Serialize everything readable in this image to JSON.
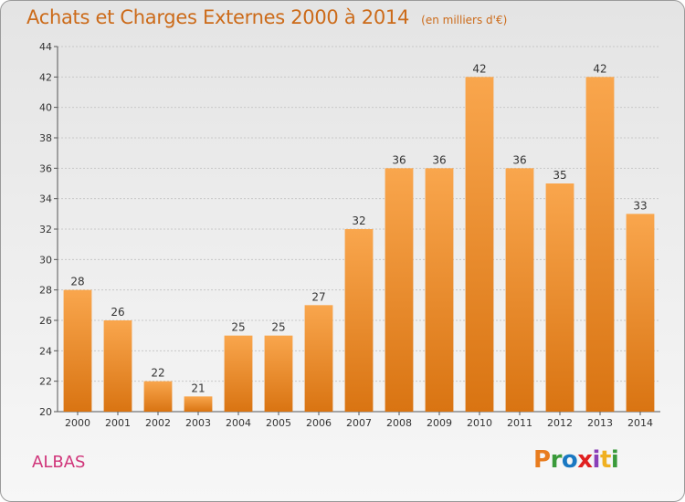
{
  "header": {
    "title": "Achats et Charges Externes 2000 à 2014",
    "subtitle": "(en milliers d'€)"
  },
  "footer": {
    "place": "ALBAS",
    "logo": "Proxiti",
    "logo_colors": [
      "#e87c1e",
      "#3a9a3a",
      "#1a78c2",
      "#e02020",
      "#8a3fb8",
      "#f0b020",
      "#3a9a3a"
    ]
  },
  "colors": {
    "bar_top": "#f9a64d",
    "bar_bottom": "#d97412",
    "accent": "#cc6b1a",
    "place": "#d0357a"
  },
  "chart_data": {
    "type": "bar",
    "title": "Achats et Charges Externes 2000 à 2014",
    "subtitle": "(en milliers d'€)",
    "categories": [
      "2000",
      "2001",
      "2002",
      "2003",
      "2004",
      "2005",
      "2006",
      "2007",
      "2008",
      "2009",
      "2010",
      "2011",
      "2012",
      "2013",
      "2014"
    ],
    "values": [
      28,
      26,
      22,
      21,
      25,
      25,
      27,
      32,
      36,
      36,
      42,
      36,
      35,
      42,
      33
    ],
    "ylim": [
      20,
      44
    ],
    "yticks": [
      20,
      22,
      24,
      26,
      28,
      30,
      32,
      34,
      36,
      38,
      40,
      42,
      44
    ],
    "grid": true,
    "xlabel": "",
    "ylabel": ""
  }
}
